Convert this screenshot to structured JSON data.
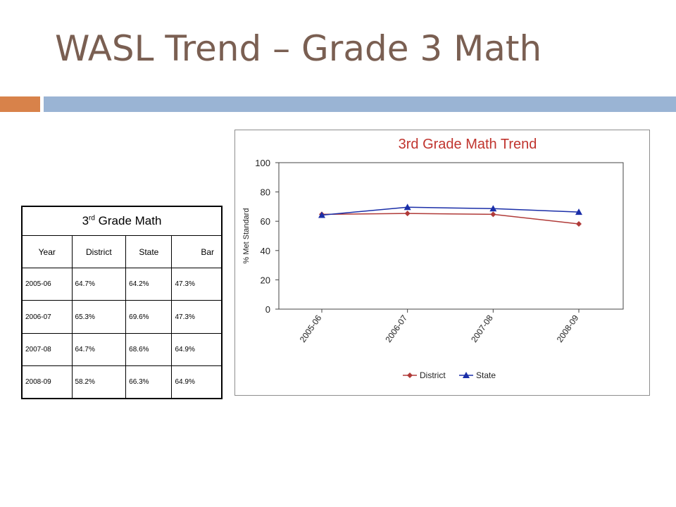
{
  "slide": {
    "title": "WASL Trend – Grade 3 Math"
  },
  "table": {
    "caption_pre": "3",
    "caption_sup": "rd",
    "caption_post": " Grade Math",
    "headers": [
      "Year",
      "District",
      "State",
      "Bar"
    ],
    "rows": [
      [
        "2005-06",
        "64.7%",
        "64.2%",
        "47.3%"
      ],
      [
        "2006-07",
        "65.3%",
        "69.6%",
        "47.3%"
      ],
      [
        "2007-08",
        "64.7%",
        "68.6%",
        "64.9%"
      ],
      [
        "2008-09",
        "58.2%",
        "66.3%",
        "64.9%"
      ]
    ]
  },
  "chart_data": {
    "type": "line",
    "title": "3rd Grade Math Trend",
    "xlabel": "",
    "ylabel": "% Met Standard",
    "categories": [
      "2005-06",
      "2006-07",
      "2007-08",
      "2008-09"
    ],
    "ylim": [
      0,
      100
    ],
    "yticks": [
      0,
      20,
      40,
      60,
      80,
      100
    ],
    "grid": false,
    "legend_position": "bottom",
    "series": [
      {
        "name": "District",
        "values": [
          64.7,
          65.3,
          64.7,
          58.2
        ],
        "color": "#b03a38",
        "marker": "diamond"
      },
      {
        "name": "State",
        "values": [
          64.2,
          69.6,
          68.6,
          66.3
        ],
        "color": "#1a2ea8",
        "marker": "triangle"
      }
    ],
    "title_color": "#c0342e"
  }
}
